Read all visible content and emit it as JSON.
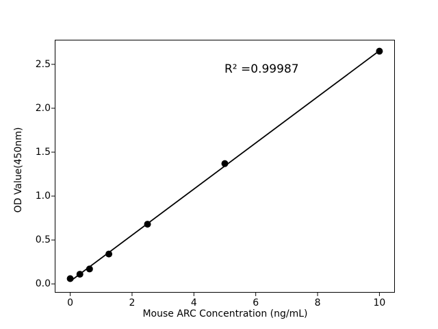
{
  "figure": {
    "background_color": "#ffffff"
  },
  "chart_data": {
    "type": "scatter",
    "title": "",
    "xlabel": "Mouse ARC Concentration (ng/mL)",
    "ylabel": "OD Value(450nm)",
    "annotation": "R² =0.99987",
    "x": [
      0,
      0.313,
      0.625,
      1.25,
      2.5,
      5,
      10
    ],
    "y": [
      0.06,
      0.11,
      0.17,
      0.34,
      0.68,
      1.37,
      2.65
    ],
    "fit_line": {
      "x": [
        0,
        10
      ],
      "y": [
        0.03,
        2.655
      ]
    },
    "x_tick_labels": [
      "0",
      "2",
      "4",
      "6",
      "8",
      "10"
    ],
    "y_tick_labels": [
      "0.0",
      "0.5",
      "1.0",
      "1.5",
      "2.0",
      "2.5"
    ],
    "xlim": [
      -0.5,
      10.5
    ],
    "ylim": [
      -0.1,
      2.78
    ],
    "grid": false,
    "legend_position": "none",
    "marker_color": "#000000",
    "line_color": "#000000",
    "axis_color": "#000000"
  }
}
